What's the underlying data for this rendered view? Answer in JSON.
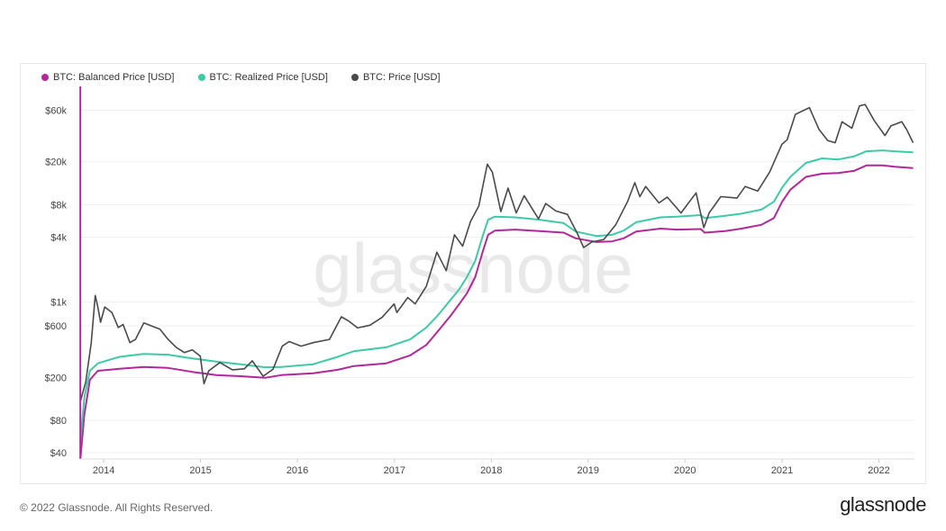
{
  "footer": {
    "copyright": "© 2022 Glassnode. All Rights Reserved.",
    "logo": "glassnode"
  },
  "watermark": "glassnode",
  "colors": {
    "balanced": "#b0299a",
    "realized": "#3ec9a7",
    "price": "#4a4a4a",
    "grid": "#efefef",
    "axis_text": "#444444"
  },
  "chart_data": {
    "type": "line",
    "title": "",
    "xlabel": "",
    "ylabel": "",
    "y_scale": "log",
    "ylim": [
      35,
      100000
    ],
    "xlim": [
      "2013-10-01",
      "2022-05-15"
    ],
    "y_ticks": [
      {
        "value": 40,
        "label": "$40"
      },
      {
        "value": 80,
        "label": "$80"
      },
      {
        "value": 200,
        "label": "$200"
      },
      {
        "value": 600,
        "label": "$600"
      },
      {
        "value": 1000,
        "label": "$1k"
      },
      {
        "value": 4000,
        "label": "$4k"
      },
      {
        "value": 8000,
        "label": "$8k"
      },
      {
        "value": 20000,
        "label": "$20k"
      },
      {
        "value": 60000,
        "label": "$60k"
      }
    ],
    "x_ticks": [
      {
        "value": "2014-01-01",
        "label": "2014"
      },
      {
        "value": "2015-01-01",
        "label": "2015"
      },
      {
        "value": "2016-01-01",
        "label": "2016"
      },
      {
        "value": "2017-01-01",
        "label": "2017"
      },
      {
        "value": "2018-01-01",
        "label": "2018"
      },
      {
        "value": "2019-01-01",
        "label": "2019"
      },
      {
        "value": "2020-01-01",
        "label": "2020"
      },
      {
        "value": "2021-01-01",
        "label": "2021"
      },
      {
        "value": "2022-01-01",
        "label": "2022"
      }
    ],
    "grid": true,
    "legend_position": "top-left",
    "series": [
      {
        "name": "BTC: Balanced Price [USD]",
        "color": "#b0299a",
        "points": [
          [
            "2013-10-05",
            35
          ],
          [
            "2013-10-20",
            90
          ],
          [
            "2013-11-10",
            190
          ],
          [
            "2013-12-10",
            230
          ],
          [
            "2014-03-01",
            240
          ],
          [
            "2014-06-01",
            250
          ],
          [
            "2014-09-01",
            245
          ],
          [
            "2014-12-01",
            225
          ],
          [
            "2015-03-01",
            210
          ],
          [
            "2015-06-01",
            205
          ],
          [
            "2015-09-01",
            198
          ],
          [
            "2015-11-01",
            210
          ],
          [
            "2016-03-01",
            218
          ],
          [
            "2016-06-01",
            235
          ],
          [
            "2016-08-01",
            255
          ],
          [
            "2016-12-01",
            270
          ],
          [
            "2017-03-01",
            320
          ],
          [
            "2017-05-01",
            400
          ],
          [
            "2017-06-15",
            540
          ],
          [
            "2017-08-01",
            750
          ],
          [
            "2017-09-01",
            950
          ],
          [
            "2017-10-01",
            1200
          ],
          [
            "2017-11-01",
            1700
          ],
          [
            "2017-12-01",
            3000
          ],
          [
            "2017-12-20",
            4200
          ],
          [
            "2018-01-15",
            4600
          ],
          [
            "2018-04-01",
            4700
          ],
          [
            "2018-07-01",
            4550
          ],
          [
            "2018-10-01",
            4400
          ],
          [
            "2018-11-15",
            3900
          ],
          [
            "2019-02-01",
            3600
          ],
          [
            "2019-04-01",
            3650
          ],
          [
            "2019-05-15",
            3900
          ],
          [
            "2019-07-01",
            4500
          ],
          [
            "2019-10-01",
            4800
          ],
          [
            "2019-12-01",
            4700
          ],
          [
            "2020-03-01",
            4750
          ],
          [
            "2020-03-15",
            4400
          ],
          [
            "2020-06-01",
            4550
          ],
          [
            "2020-08-01",
            4800
          ],
          [
            "2020-10-15",
            5200
          ],
          [
            "2020-12-01",
            6000
          ],
          [
            "2021-01-01",
            8500
          ],
          [
            "2021-02-01",
            11000
          ],
          [
            "2021-04-01",
            14500
          ],
          [
            "2021-06-01",
            15500
          ],
          [
            "2021-08-01",
            15700
          ],
          [
            "2021-10-01",
            16500
          ],
          [
            "2021-11-15",
            18500
          ],
          [
            "2022-01-15",
            18500
          ],
          [
            "2022-03-01",
            18000
          ],
          [
            "2022-05-10",
            17500
          ]
        ]
      },
      {
        "name": "BTC: Realized Price [USD]",
        "color": "#3ec9a7",
        "points": [
          [
            "2013-10-05",
            50
          ],
          [
            "2013-10-20",
            130
          ],
          [
            "2013-11-10",
            230
          ],
          [
            "2013-12-10",
            270
          ],
          [
            "2014-03-01",
            310
          ],
          [
            "2014-06-01",
            330
          ],
          [
            "2014-09-01",
            325
          ],
          [
            "2014-12-01",
            300
          ],
          [
            "2015-03-01",
            280
          ],
          [
            "2015-06-01",
            265
          ],
          [
            "2015-09-01",
            248
          ],
          [
            "2015-11-01",
            250
          ],
          [
            "2016-03-01",
            265
          ],
          [
            "2016-06-01",
            310
          ],
          [
            "2016-08-01",
            350
          ],
          [
            "2016-12-01",
            380
          ],
          [
            "2017-03-01",
            450
          ],
          [
            "2017-05-01",
            580
          ],
          [
            "2017-06-15",
            760
          ],
          [
            "2017-08-01",
            1050
          ],
          [
            "2017-09-01",
            1300
          ],
          [
            "2017-10-01",
            1700
          ],
          [
            "2017-11-01",
            2400
          ],
          [
            "2017-12-01",
            4200
          ],
          [
            "2017-12-20",
            5800
          ],
          [
            "2018-01-15",
            6200
          ],
          [
            "2018-04-01",
            6100
          ],
          [
            "2018-07-01",
            5800
          ],
          [
            "2018-10-01",
            5400
          ],
          [
            "2018-11-15",
            4500
          ],
          [
            "2019-02-01",
            4100
          ],
          [
            "2019-04-01",
            4200
          ],
          [
            "2019-05-15",
            4600
          ],
          [
            "2019-07-01",
            5500
          ],
          [
            "2019-10-01",
            6100
          ],
          [
            "2019-12-01",
            6200
          ],
          [
            "2020-03-01",
            6400
          ],
          [
            "2020-03-15",
            6000
          ],
          [
            "2020-06-01",
            6300
          ],
          [
            "2020-08-01",
            6600
          ],
          [
            "2020-10-15",
            7200
          ],
          [
            "2020-12-01",
            8500
          ],
          [
            "2021-01-01",
            11500
          ],
          [
            "2021-02-01",
            14500
          ],
          [
            "2021-04-01",
            19500
          ],
          [
            "2021-06-01",
            21500
          ],
          [
            "2021-08-01",
            21000
          ],
          [
            "2021-10-01",
            22500
          ],
          [
            "2021-11-15",
            25000
          ],
          [
            "2022-01-15",
            25500
          ],
          [
            "2022-03-01",
            25000
          ],
          [
            "2022-05-10",
            24500
          ]
        ]
      },
      {
        "name": "BTC: Price [USD]",
        "color": "#4a4a4a",
        "points": [
          [
            "2013-10-05",
            120
          ],
          [
            "2013-10-25",
            180
          ],
          [
            "2013-11-15",
            420
          ],
          [
            "2013-11-30",
            1150
          ],
          [
            "2013-12-10",
            900
          ],
          [
            "2013-12-20",
            650
          ],
          [
            "2014-01-05",
            900
          ],
          [
            "2014-02-01",
            800
          ],
          [
            "2014-02-25",
            580
          ],
          [
            "2014-03-15",
            620
          ],
          [
            "2014-04-10",
            420
          ],
          [
            "2014-05-01",
            450
          ],
          [
            "2014-06-01",
            640
          ],
          [
            "2014-07-01",
            600
          ],
          [
            "2014-08-01",
            560
          ],
          [
            "2014-09-01",
            450
          ],
          [
            "2014-10-01",
            380
          ],
          [
            "2014-11-01",
            340
          ],
          [
            "2014-12-01",
            360
          ],
          [
            "2014-12-31",
            315
          ],
          [
            "2015-01-14",
            175
          ],
          [
            "2015-02-01",
            230
          ],
          [
            "2015-03-15",
            275
          ],
          [
            "2015-05-01",
            235
          ],
          [
            "2015-06-15",
            240
          ],
          [
            "2015-07-15",
            285
          ],
          [
            "2015-08-25",
            205
          ],
          [
            "2015-10-01",
            238
          ],
          [
            "2015-11-05",
            390
          ],
          [
            "2015-12-01",
            430
          ],
          [
            "2016-01-15",
            390
          ],
          [
            "2016-03-01",
            420
          ],
          [
            "2016-05-01",
            450
          ],
          [
            "2016-06-15",
            730
          ],
          [
            "2016-07-15",
            660
          ],
          [
            "2016-08-15",
            575
          ],
          [
            "2016-10-01",
            610
          ],
          [
            "2016-11-15",
            720
          ],
          [
            "2016-12-31",
            960
          ],
          [
            "2017-01-10",
            800
          ],
          [
            "2017-02-20",
            1100
          ],
          [
            "2017-03-20",
            960
          ],
          [
            "2017-05-01",
            1400
          ],
          [
            "2017-06-10",
            2900
          ],
          [
            "2017-07-15",
            1950
          ],
          [
            "2017-08-15",
            4200
          ],
          [
            "2017-09-15",
            3300
          ],
          [
            "2017-10-15",
            5600
          ],
          [
            "2017-11-15",
            7800
          ],
          [
            "2017-12-17",
            19000
          ],
          [
            "2018-01-05",
            16000
          ],
          [
            "2018-02-06",
            6900
          ],
          [
            "2018-03-05",
            11400
          ],
          [
            "2018-04-05",
            6700
          ],
          [
            "2018-05-05",
            9700
          ],
          [
            "2018-06-28",
            5900
          ],
          [
            "2018-07-25",
            8200
          ],
          [
            "2018-09-01",
            7000
          ],
          [
            "2018-10-15",
            6500
          ],
          [
            "2018-11-20",
            4400
          ],
          [
            "2018-12-15",
            3200
          ],
          [
            "2019-01-15",
            3600
          ],
          [
            "2019-03-01",
            3800
          ],
          [
            "2019-04-15",
            5200
          ],
          [
            "2019-05-30",
            8600
          ],
          [
            "2019-06-26",
            12800
          ],
          [
            "2019-07-15",
            9500
          ],
          [
            "2019-08-06",
            11800
          ],
          [
            "2019-09-25",
            8300
          ],
          [
            "2019-10-26",
            9400
          ],
          [
            "2019-12-17",
            6700
          ],
          [
            "2020-02-12",
            10300
          ],
          [
            "2020-03-12",
            4900
          ],
          [
            "2020-04-01",
            6700
          ],
          [
            "2020-05-15",
            9500
          ],
          [
            "2020-07-15",
            9200
          ],
          [
            "2020-08-15",
            11800
          ],
          [
            "2020-10-01",
            10700
          ],
          [
            "2020-11-15",
            16000
          ],
          [
            "2020-12-31",
            29000
          ],
          [
            "2021-01-20",
            32000
          ],
          [
            "2021-02-20",
            55000
          ],
          [
            "2021-04-14",
            63500
          ],
          [
            "2021-05-20",
            40000
          ],
          [
            "2021-06-22",
            31500
          ],
          [
            "2021-07-20",
            30000
          ],
          [
            "2021-08-15",
            47000
          ],
          [
            "2021-09-21",
            41000
          ],
          [
            "2021-10-20",
            66000
          ],
          [
            "2021-11-10",
            68000
          ],
          [
            "2021-12-15",
            48000
          ],
          [
            "2022-01-24",
            35000
          ],
          [
            "2022-02-15",
            43000
          ],
          [
            "2022-03-28",
            47000
          ],
          [
            "2022-04-15",
            40000
          ],
          [
            "2022-05-10",
            30000
          ]
        ]
      }
    ]
  }
}
